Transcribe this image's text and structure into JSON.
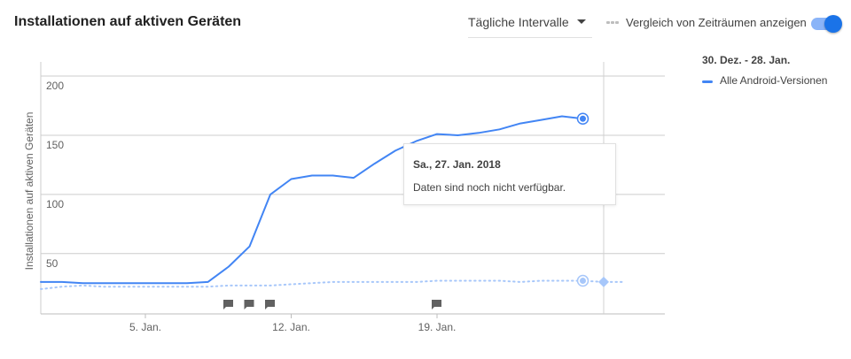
{
  "card": {
    "title": "Installationen auf aktiven Geräten"
  },
  "controls": {
    "interval": "Tägliche Intervalle",
    "compare_label": "Vergleich von Zeiträumen anzeigen",
    "compare_enabled": true
  },
  "legend": {
    "range": "30. Dez. - 28. Jan.",
    "series_label": "Alle Android-Versionen"
  },
  "tooltip": {
    "date": "Sa., 27. Jan. 2018",
    "message": "Daten sind noch nicht verfügbar."
  },
  "colors": {
    "primary": "#4285f4",
    "comparison": "#a7c7fa",
    "toggle": "#1a73e8",
    "grid": "#cccccc"
  },
  "icons": {
    "annotation": "flag-icon",
    "dropdown": "chevron-down-icon"
  },
  "chart_data": {
    "type": "line",
    "title": "",
    "ylabel": "Installationen auf aktiven Geräten",
    "xlabel": "",
    "ylim": [
      -1,
      212
    ],
    "xlim": [
      "2017-12-30",
      "2018-01-28"
    ],
    "yticks": [
      50,
      100,
      150,
      200
    ],
    "xticks": [
      {
        "label": "5. Jan.",
        "date": "2018-01-05"
      },
      {
        "label": "12. Jan.",
        "date": "2018-01-12"
      },
      {
        "label": "19. Jan.",
        "date": "2018-01-19"
      }
    ],
    "grid": true,
    "legend_position": "right",
    "series": [
      {
        "name": "Alle Android-Versionen",
        "style": "solid",
        "x": [
          "2017-12-30",
          "2017-12-31",
          "2018-01-01",
          "2018-01-02",
          "2018-01-03",
          "2018-01-04",
          "2018-01-05",
          "2018-01-06",
          "2018-01-07",
          "2018-01-08",
          "2018-01-09",
          "2018-01-10",
          "2018-01-11",
          "2018-01-12",
          "2018-01-13",
          "2018-01-14",
          "2018-01-15",
          "2018-01-16",
          "2018-01-17",
          "2018-01-18",
          "2018-01-19",
          "2018-01-20",
          "2018-01-21",
          "2018-01-22",
          "2018-01-23",
          "2018-01-24",
          "2018-01-25",
          "2018-01-26"
        ],
        "values": [
          26,
          26,
          26,
          25,
          25,
          25,
          25,
          25,
          25,
          26,
          39,
          56,
          100,
          113,
          116,
          116,
          114,
          126,
          137,
          145,
          151,
          150,
          152,
          155,
          160,
          163,
          166,
          164
        ]
      },
      {
        "name": "",
        "style": "dotted",
        "x": [
          "2017-12-30",
          "2017-12-31",
          "2018-01-01",
          "2018-01-02",
          "2018-01-03",
          "2018-01-04",
          "2018-01-05",
          "2018-01-06",
          "2018-01-07",
          "2018-01-08",
          "2018-01-09",
          "2018-01-10",
          "2018-01-11",
          "2018-01-12",
          "2018-01-13",
          "2018-01-14",
          "2018-01-15",
          "2018-01-16",
          "2018-01-17",
          "2018-01-18",
          "2018-01-19",
          "2018-01-20",
          "2018-01-21",
          "2018-01-22",
          "2018-01-23",
          "2018-01-24",
          "2018-01-25",
          "2018-01-26",
          "2018-01-27",
          "2018-01-28"
        ],
        "values": [
          20,
          20,
          22,
          23,
          22,
          22,
          22,
          22,
          22,
          22,
          23,
          23,
          23,
          24,
          25,
          26,
          26,
          26,
          26,
          26,
          27,
          27,
          27,
          27,
          26,
          27,
          27,
          27,
          26,
          26
        ]
      }
    ],
    "cursor_date": "2018-01-27",
    "annotations": [
      "2018-01-09",
      "2018-01-10",
      "2018-01-11",
      "2018-01-19"
    ]
  }
}
